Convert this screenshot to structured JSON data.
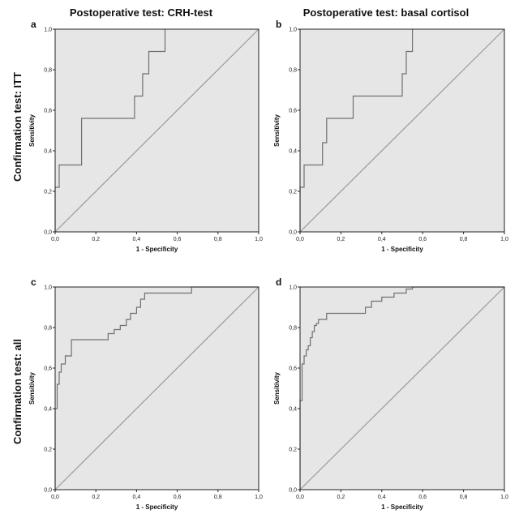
{
  "column_titles": [
    "Postoperative test: CRH-test",
    "Postoperative test: basal cortisol"
  ],
  "row_titles": [
    "Confirmation test: ITT",
    "Confirmation test: all"
  ],
  "colors": {
    "plot_bg": "#e6e6e6",
    "curve": "#707070",
    "diagonal": "#9a9a9a",
    "frame": "#222222"
  },
  "chart_data": [
    {
      "type": "line",
      "panel_label": "a",
      "xlabel": "1 - Specificity",
      "ylabel": "Sensitivity",
      "xlim": [
        0,
        1
      ],
      "ylim": [
        0,
        1
      ],
      "x_ticks": [
        "0,0",
        "0,2",
        "0,4",
        "0,6",
        "0,8",
        "1,0"
      ],
      "y_ticks": [
        "0,0",
        "0,2",
        "0,4",
        "0,6",
        "0,8",
        "1,0"
      ],
      "reference_line": [
        [
          0,
          0
        ],
        [
          1,
          1
        ]
      ],
      "series": [
        {
          "x": [
            0,
            0,
            0.02,
            0.02,
            0.13,
            0.13,
            0.39,
            0.39,
            0.43,
            0.43,
            0.46,
            0.46,
            0.54,
            0.54
          ],
          "y": [
            0,
            0.22,
            0.22,
            0.33,
            0.33,
            0.56,
            0.56,
            0.67,
            0.67,
            0.78,
            0.78,
            0.89,
            0.89,
            1.0
          ]
        }
      ]
    },
    {
      "type": "line",
      "panel_label": "b",
      "xlabel": "1 - Specificity",
      "ylabel": "Sensitivity",
      "xlim": [
        0,
        1
      ],
      "ylim": [
        0,
        1
      ],
      "x_ticks": [
        "0,0",
        "0,2",
        "0,4",
        "0,6",
        "0,8",
        "1,0"
      ],
      "y_ticks": [
        "0,0",
        "0,2",
        "0,4",
        "0,6",
        "0,8",
        "1,0"
      ],
      "reference_line": [
        [
          0,
          0
        ],
        [
          1,
          1
        ]
      ],
      "series": [
        {
          "x": [
            0,
            0,
            0.02,
            0.02,
            0.11,
            0.11,
            0.13,
            0.13,
            0.26,
            0.26,
            0.5,
            0.5,
            0.52,
            0.52,
            0.55,
            0.55
          ],
          "y": [
            0,
            0.22,
            0.22,
            0.33,
            0.33,
            0.44,
            0.44,
            0.56,
            0.56,
            0.67,
            0.67,
            0.78,
            0.78,
            0.89,
            0.89,
            1.0
          ]
        }
      ]
    },
    {
      "type": "line",
      "panel_label": "c",
      "xlabel": "1 - Specificity",
      "ylabel": "Sensitivity",
      "xlim": [
        0,
        1
      ],
      "ylim": [
        0,
        1
      ],
      "x_ticks": [
        "0,0",
        "0,2",
        "0,4",
        "0,6",
        "0,8",
        "1,0"
      ],
      "y_ticks": [
        "0,0",
        "0,2",
        "0,4",
        "0,6",
        "0,8",
        "1,0"
      ],
      "reference_line": [
        [
          0,
          0
        ],
        [
          1,
          1
        ]
      ],
      "series": [
        {
          "x": [
            0,
            0,
            0.01,
            0.01,
            0.02,
            0.02,
            0.03,
            0.03,
            0.05,
            0.05,
            0.08,
            0.08,
            0.26,
            0.26,
            0.29,
            0.29,
            0.32,
            0.32,
            0.35,
            0.35,
            0.37,
            0.37,
            0.4,
            0.4,
            0.42,
            0.42,
            0.44,
            0.44,
            0.67,
            0.67,
            1.0
          ],
          "y": [
            0,
            0.4,
            0.4,
            0.52,
            0.52,
            0.58,
            0.58,
            0.62,
            0.62,
            0.66,
            0.66,
            0.74,
            0.74,
            0.77,
            0.77,
            0.79,
            0.79,
            0.81,
            0.81,
            0.84,
            0.84,
            0.87,
            0.87,
            0.9,
            0.9,
            0.94,
            0.94,
            0.97,
            0.97,
            1.0,
            1.0
          ]
        }
      ]
    },
    {
      "type": "line",
      "panel_label": "d",
      "xlabel": "1 - Specificity",
      "ylabel": "Sensitivity",
      "xlim": [
        0,
        1
      ],
      "ylim": [
        0,
        1
      ],
      "x_ticks": [
        "0,0",
        "0,2",
        "0,4",
        "0,6",
        "0,8",
        "1,0"
      ],
      "y_ticks": [
        "0,0",
        "0,2",
        "0,4",
        "0,6",
        "0,8",
        "1,0"
      ],
      "reference_line": [
        [
          0,
          0
        ],
        [
          1,
          1
        ]
      ],
      "series": [
        {
          "x": [
            0,
            0,
            0.01,
            0.01,
            0.02,
            0.02,
            0.03,
            0.03,
            0.04,
            0.04,
            0.05,
            0.05,
            0.06,
            0.06,
            0.07,
            0.07,
            0.08,
            0.08,
            0.09,
            0.09,
            0.13,
            0.13,
            0.32,
            0.32,
            0.35,
            0.35,
            0.4,
            0.4,
            0.46,
            0.46,
            0.52,
            0.52,
            0.55,
            0.55,
            1.0
          ],
          "y": [
            0,
            0.44,
            0.44,
            0.62,
            0.62,
            0.66,
            0.66,
            0.69,
            0.69,
            0.71,
            0.71,
            0.75,
            0.75,
            0.78,
            0.78,
            0.81,
            0.81,
            0.82,
            0.82,
            0.84,
            0.84,
            0.87,
            0.87,
            0.9,
            0.9,
            0.93,
            0.93,
            0.95,
            0.95,
            0.97,
            0.97,
            0.99,
            0.99,
            1.0,
            1.0
          ]
        }
      ]
    }
  ]
}
